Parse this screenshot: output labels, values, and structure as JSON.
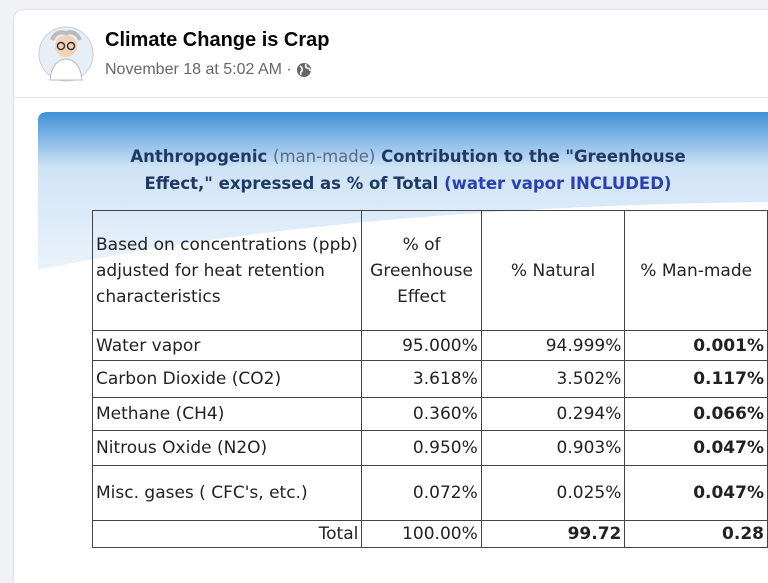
{
  "post": {
    "author": "Climate Change is Crap",
    "timestamp": "November 18 at 5:02 AM ·"
  },
  "image": {
    "title": {
      "line1": [
        "Anthropogenic ",
        "(man-made)",
        " Contribution to the \"Greenhouse"
      ],
      "line2": [
        "Effect,\" expressed as % of Total ",
        "(water vapor INCLUDED)"
      ]
    },
    "table": {
      "header": [
        "Based on concentrations (ppb) adjusted for heat retention characteristics",
        "% of Greenhouse Effect",
        "% Natural",
        "% Man-made"
      ],
      "rows": [
        [
          "Water vapor",
          "95.000%",
          "94.999%",
          "0.001%"
        ],
        [
          "Carbon Dioxide (CO2)",
          "3.618%",
          "3.502%",
          "0.117%"
        ],
        [
          "Methane (CH4)",
          "0.360%",
          "0.294%",
          "0.066%"
        ],
        [
          "Nitrous Oxide (N2O)",
          "0.950%",
          "0.903%",
          "0.047%"
        ],
        [
          "Misc. gases ( CFC's, etc.)",
          "0.072%",
          "0.025%",
          "0.047%"
        ],
        [
          "Total",
          "100.00%",
          "99.72",
          "0.28"
        ]
      ]
    }
  }
}
